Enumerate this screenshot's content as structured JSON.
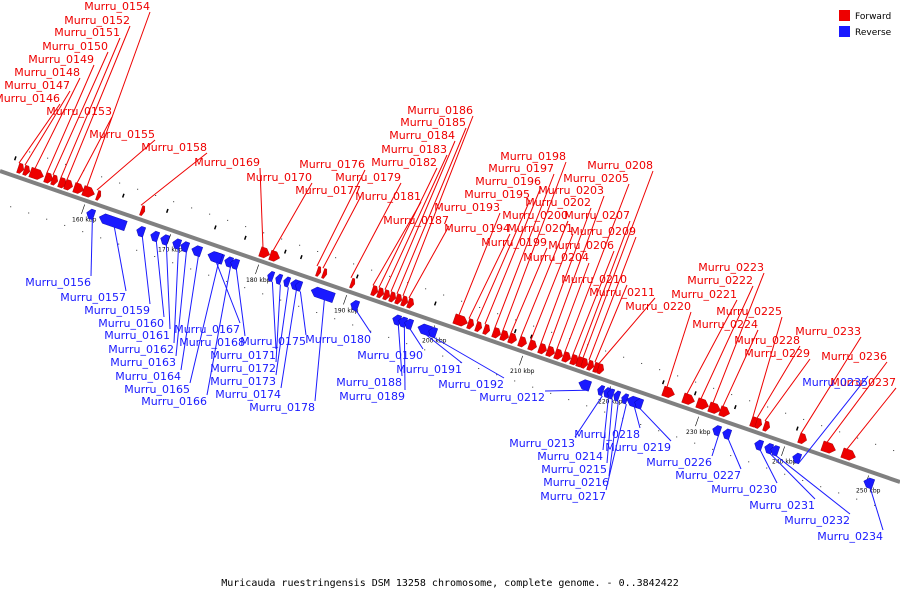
{
  "caption": "Muricauda ruestringensis DSM 13258 chromosome, complete genome. - 0..3842422",
  "legend": {
    "forward": {
      "label": "Forward",
      "color": "#ee0000"
    },
    "reverse": {
      "label": "Reverse",
      "color": "#1a1aff"
    }
  },
  "axis_color": "#808080",
  "tick_labels": [
    "160 kbp",
    "170 kbp",
    "180 kbp",
    "190 kbp",
    "200 kbp",
    "210 kbp",
    "220 kbp",
    "230 kbp",
    "240 kbp",
    "250 kbp"
  ],
  "forward_genes": [
    "Murru_0146",
    "Murru_0147",
    "Murru_0148",
    "Murru_0149",
    "Murru_0150",
    "Murru_0151",
    "Murru_0152",
    "Murru_0153",
    "Murru_0154",
    "Murru_0155",
    "Murru_0158",
    "Murru_0169",
    "Murru_0170",
    "Murru_0176",
    "Murru_0177",
    "Murru_0179",
    "Murru_0181",
    "Murru_0182",
    "Murru_0183",
    "Murru_0184",
    "Murru_0185",
    "Murru_0186",
    "Murru_0187",
    "Murru_0193",
    "Murru_0194",
    "Murru_0195",
    "Murru_0196",
    "Murru_0197",
    "Murru_0198",
    "Murru_0199",
    "Murru_0200",
    "Murru_0201",
    "Murru_0202",
    "Murru_0203",
    "Murru_0204",
    "Murru_0205",
    "Murru_0206",
    "Murru_0207",
    "Murru_0208",
    "Murru_0209",
    "Murru_0210",
    "Murru_0211",
    "Murru_0220",
    "Murru_0221",
    "Murru_0222",
    "Murru_0223",
    "Murru_0224",
    "Murru_0225",
    "Murru_0228",
    "Murru_0229",
    "Murru_0233",
    "Murru_0236",
    "Murru_0237"
  ],
  "reverse_genes": [
    "Murru_0156",
    "Murru_0157",
    "Murru_0159",
    "Murru_0160",
    "Murru_0161",
    "Murru_0162",
    "Murru_0163",
    "Murru_0164",
    "Murru_0165",
    "Murru_0166",
    "Murru_0167",
    "Murru_0168",
    "Murru_0171",
    "Murru_0172",
    "Murru_0173",
    "Murru_0174",
    "Murru_0175",
    "Murru_0178",
    "Murru_0180",
    "Murru_0188",
    "Murru_0189",
    "Murru_0190",
    "Murru_0191",
    "Murru_0192",
    "Murru_0212",
    "Murru_0213",
    "Murru_0214",
    "Murru_0215",
    "Murru_0216",
    "Murru_0217",
    "Murru_0218",
    "Murru_0219",
    "Murru_0226",
    "Murru_0227",
    "Murru_0230",
    "Murru_0231",
    "Murru_0232",
    "Murru_0234",
    "Murru_0235"
  ]
}
